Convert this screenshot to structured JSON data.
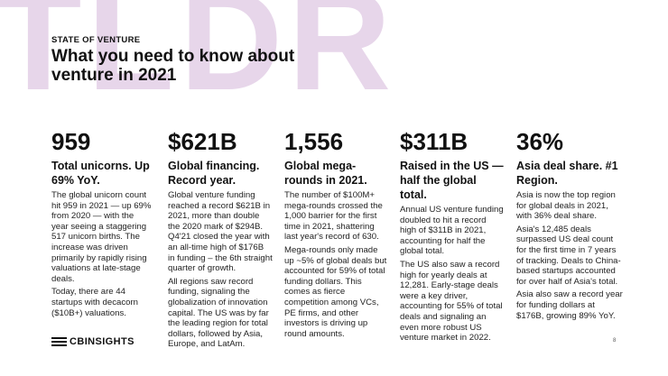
{
  "watermark": "TLDR",
  "header": {
    "kicker": "STATE OF VENTURE",
    "title": "What you need to know about venture in 2021"
  },
  "columns": [
    {
      "stat": "959",
      "subtitle": "Total unicorns. Up 69% YoY.",
      "paragraphs": [
        "The global unicorn count hit 959 in 2021 — up 69% from 2020 — with the year seeing a staggering 517 unicorn births. The increase was driven primarily by rapidly rising valuations at late-stage deals.",
        "Today, there are 44 startups with decacorn ($10B+) valuations."
      ]
    },
    {
      "stat": "$621B",
      "subtitle": "Global financing. Record year.",
      "paragraphs": [
        "Global venture funding reached a record $621B in 2021, more than double the 2020 mark of $294B. Q4'21 closed the year with an all-time high of $176B in funding – the 6th straight quarter of growth.",
        "All regions saw record funding, signaling the globalization of innovation capital. The US was by far the leading region for total dollars, followed by Asia, Europe, and LatAm."
      ]
    },
    {
      "stat": "1,556",
      "subtitle": "Global mega-rounds in 2021.",
      "paragraphs": [
        "The number of $100M+ mega-rounds crossed the 1,000 barrier for the first time in 2021, shattering last year's record of 630.",
        "Mega-rounds only made up ~5% of global deals but accounted for 59% of total funding dollars. This comes as fierce competition among VCs, PE firms, and other investors is driving up round amounts."
      ]
    },
    {
      "stat": "$311B",
      "subtitle": "Raised in the US — half the global total.",
      "paragraphs": [
        "Annual US venture funding doubled to hit a record high of $311B in 2021, accounting for half the global total.",
        "The US also saw a record high for yearly deals at 12,281. Early-stage deals were a key driver, accounting for 55% of total deals and signaling an even more robust US venture market in 2022."
      ]
    },
    {
      "stat": "36%",
      "subtitle": "Asia deal share. #1 Region.",
      "paragraphs": [
        "Asia is now the top region for global deals in 2021, with 36% deal share.",
        "Asia's 12,485 deals surpassed US deal count for the first time in 7 years of tracking. Deals to China-based startups accounted for over half of Asia's total.",
        "Asia also saw a record year for funding dollars at $176B, growing 89% YoY."
      ]
    }
  ],
  "footer": {
    "logo_text": "CBINSIGHTS",
    "page_number": "8"
  },
  "colors": {
    "watermark": "#e7d6ea",
    "text": "#111111"
  }
}
